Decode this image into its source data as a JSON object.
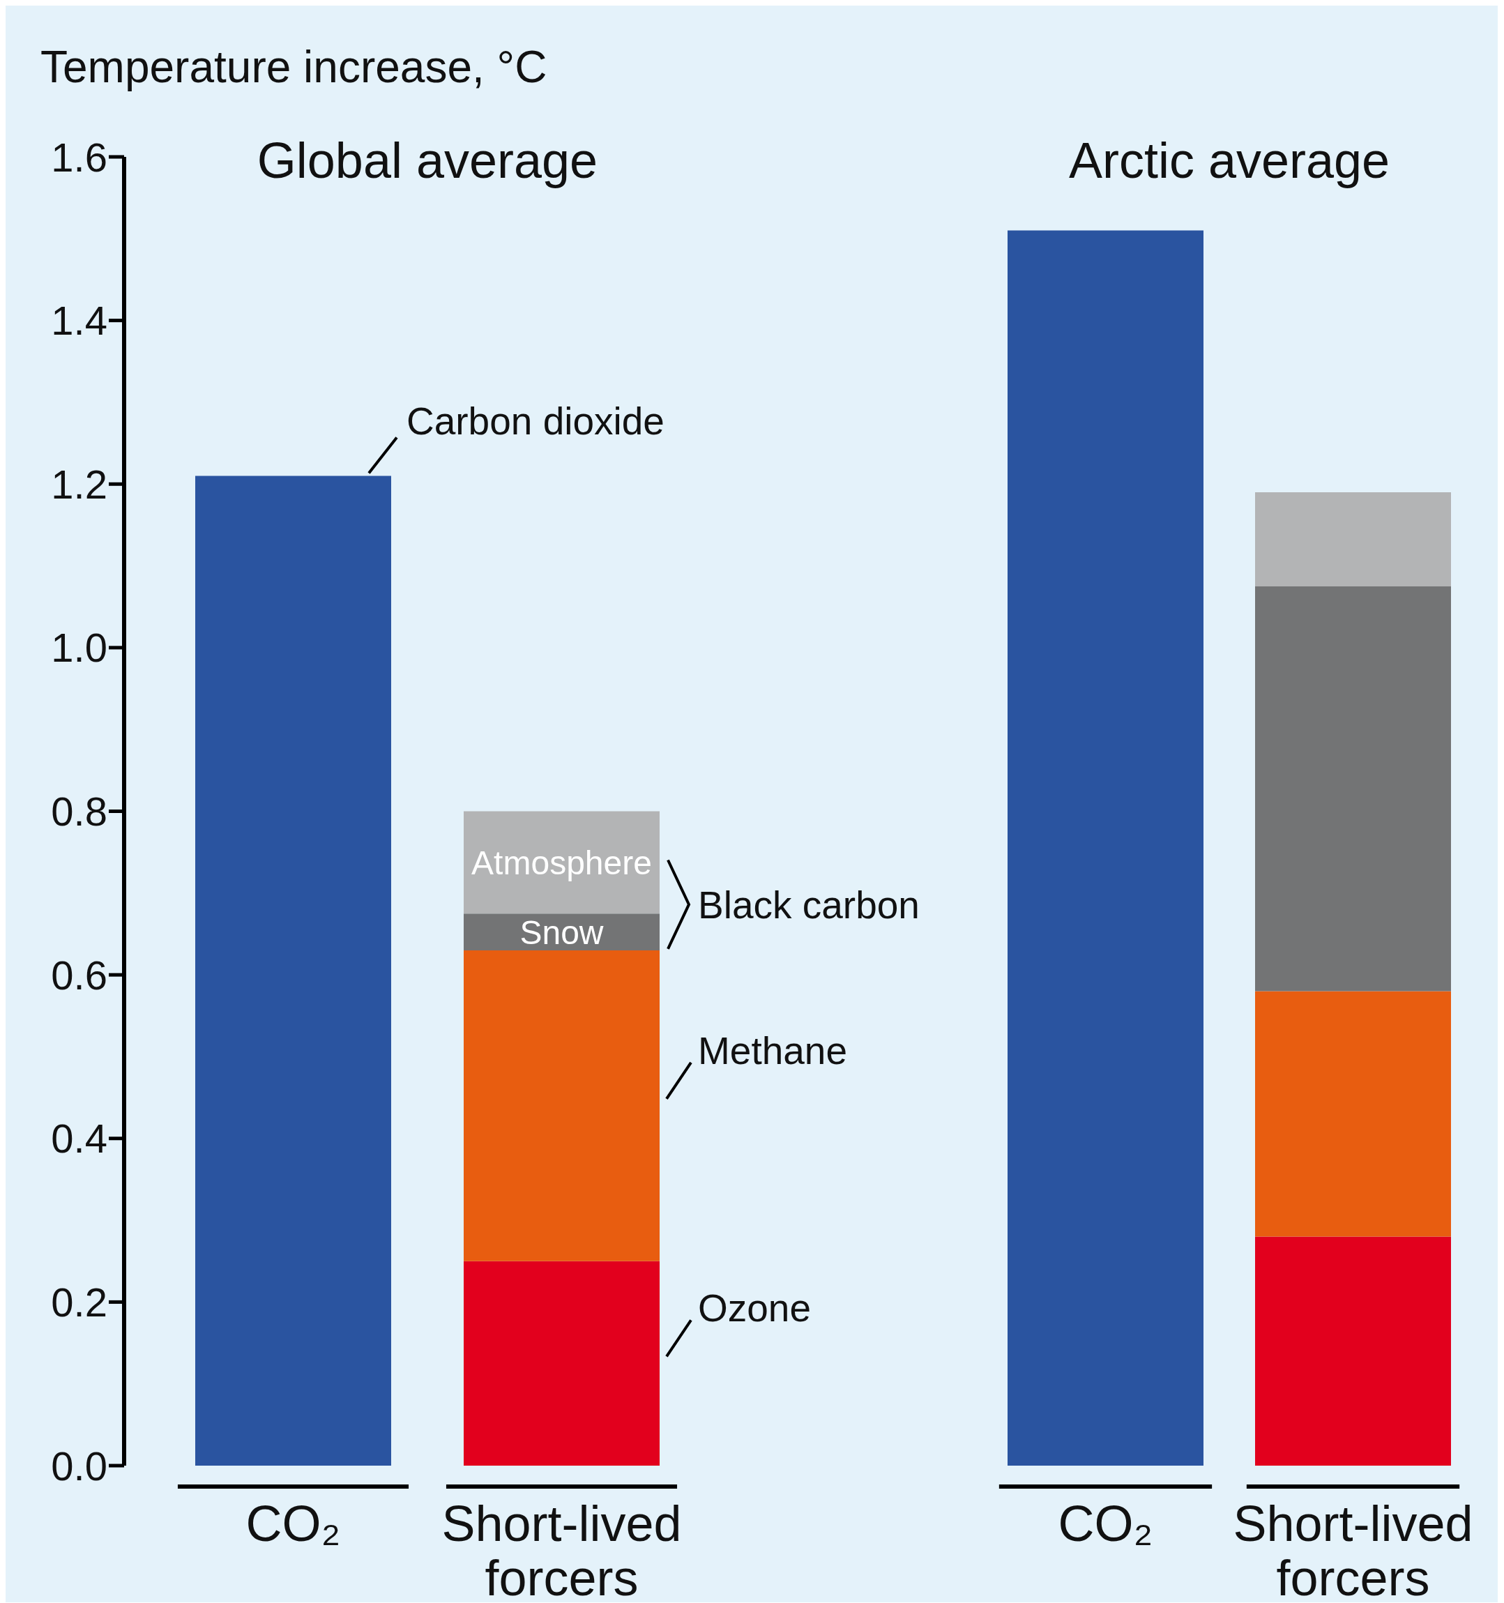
{
  "chart_data": [
    {
      "type": "bar",
      "title": "Global average",
      "ylabel": "Temperature increase, °C",
      "categories": [
        "CO₂",
        "Short-lived forcers"
      ],
      "stacked": true,
      "ylim": [
        0,
        1.6
      ],
      "yticks": [
        {
          "value": 0,
          "label": "0.0"
        },
        0.2,
        0.4,
        0.6,
        0.8,
        {
          "value": 1,
          "label": "1.0"
        },
        1.2,
        1.4,
        1.6
      ],
      "grid": false,
      "legend": false,
      "series": [
        {
          "name": "Carbon dioxide",
          "color": "#2a54a0",
          "values": [
            1.21,
            null
          ]
        },
        {
          "name": "Ozone",
          "color": "#e2001d",
          "values": [
            null,
            0.25
          ]
        },
        {
          "name": "Methane",
          "color": "#e85d10",
          "values": [
            null,
            0.38
          ]
        },
        {
          "name": "Snow",
          "color": "#737475",
          "values": [
            null,
            0.045
          ]
        },
        {
          "name": "Atmosphere",
          "color": "#b3b4b5",
          "values": [
            null,
            0.125
          ]
        }
      ],
      "annotations": [
        "Black carbon"
      ]
    },
    {
      "type": "bar",
      "title": "Arctic average",
      "categories": [
        "CO₂",
        "Short-lived forcers"
      ],
      "stacked": true,
      "ylim": [
        0,
        1.6
      ],
      "tick_labels": "x",
      "grid": false,
      "legend": false,
      "series": [
        {
          "color": "#2a54a0",
          "values": [
            1.51,
            null
          ]
        },
        {
          "color": "#e2001d",
          "values": [
            null,
            0.28
          ]
        },
        {
          "color": "#e85d10",
          "values": [
            null,
            0.3
          ]
        },
        {
          "color": "#737475",
          "values": [
            null,
            0.495
          ]
        },
        {
          "color": "#b3b4b5",
          "values": [
            null,
            0.115
          ]
        }
      ]
    }
  ]
}
